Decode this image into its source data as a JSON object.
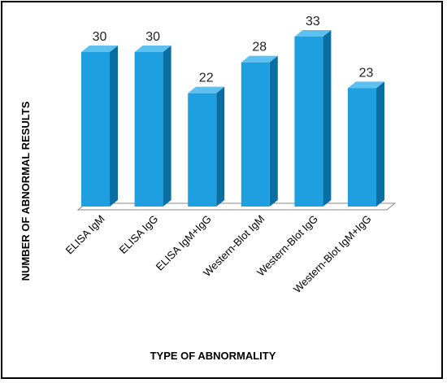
{
  "chart_data": {
    "type": "bar",
    "title": "",
    "xlabel": "TYPE OF ABNORMALITY",
    "ylabel": "NUMBER OF ABNORMAL RESULTS",
    "categories": [
      "ELISA IgM",
      "ELISA IgG",
      "ELISA IgM+IgG",
      "Western-Blot IgM",
      "Western-Blot IgG",
      "Western-Blot IgM+IgG"
    ],
    "values": [
      30,
      30,
      22,
      28,
      33,
      23
    ],
    "data_labels": [
      "30",
      "30",
      "22",
      "28",
      "33",
      "23"
    ],
    "ylim": [
      0,
      33
    ],
    "grid": false,
    "legend": "none",
    "style": "3d-column",
    "colors": {
      "front": "#1e9fe0",
      "side": "#0b6ea3",
      "top": "#5cc0f0",
      "floor": "#ffffff",
      "floor_edge": "#8a8a8a"
    }
  }
}
